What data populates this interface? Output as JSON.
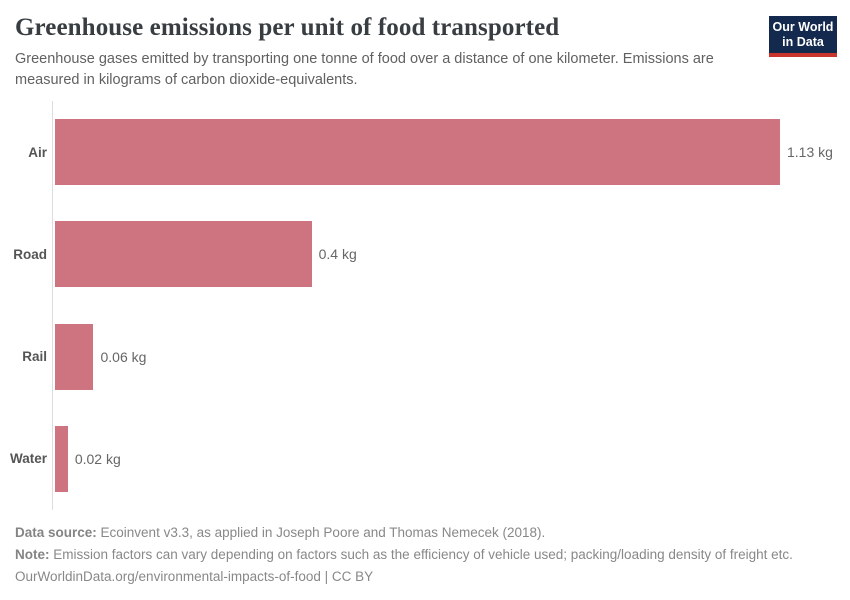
{
  "header": {
    "title": "Greenhouse emissions per unit of food transported",
    "subtitle": "Greenhouse gases emitted by transporting one tonne of food over a distance of one kilometer. Emissions are measured in kilograms of carbon dioxide-equivalents.",
    "logo": {
      "line1": "Our World",
      "line2": "in Data"
    }
  },
  "chart_data": {
    "type": "bar",
    "orientation": "horizontal",
    "title": "Greenhouse emissions per unit of food transported",
    "categories": [
      "Air",
      "Road",
      "Rail",
      "Water"
    ],
    "values": [
      1.13,
      0.4,
      0.06,
      0.02
    ],
    "value_labels": [
      "1.13 kg",
      "0.4 kg",
      "0.06 kg",
      "0.02 kg"
    ],
    "unit": "kg",
    "xlabel": "",
    "ylabel": "",
    "xlim": [
      0,
      1.13
    ],
    "grid": false,
    "legend": "none",
    "bar_color": "#ce7380"
  },
  "footer": {
    "data_source_label": "Data source:",
    "data_source_text": " Ecoinvent v3.3, as applied in Joseph Poore and Thomas Nemecek (2018).",
    "note_label": "Note:",
    "note_text": " Emission factors can vary depending on factors such as the efficiency of vehicle used; packing/loading density of freight etc.",
    "url_line": "OurWorldinData.org/environmental-impacts-of-food | CC BY"
  },
  "colors": {
    "bar": "#ce7380",
    "logo_bg": "#13294e",
    "logo_red": "#c9342c",
    "axis": "#dddddd",
    "title_text": "#383d42",
    "muted_text": "#888888"
  }
}
